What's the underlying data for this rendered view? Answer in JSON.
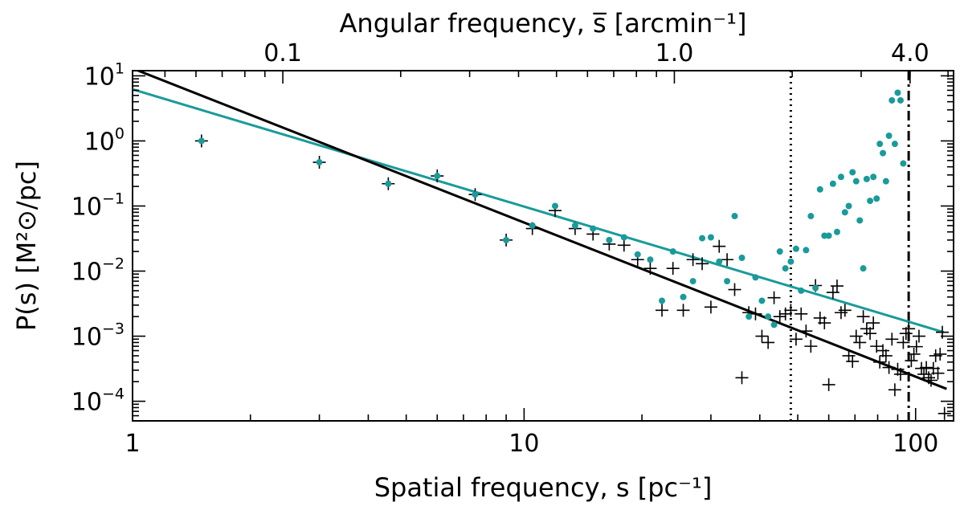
{
  "chart_data": {
    "type": "scatter",
    "x_scale": "log",
    "y_scale": "log",
    "xlim": [
      1,
      125
    ],
    "ylim": [
      5e-05,
      12
    ],
    "xlabel": "Spatial frequency, s [pc⁻¹]",
    "top_xlabel": "Angular frequency, s̅ [arcmin⁻¹]",
    "ylabel": "P(s)   [M²⊙/pc]",
    "x_ticks": [
      {
        "value": 1,
        "label": "1"
      },
      {
        "value": 10,
        "label": "10"
      },
      {
        "value": 100,
        "label": "100"
      }
    ],
    "top_ticks": [
      {
        "value": 0.1,
        "label": "0.1"
      },
      {
        "value": 1.0,
        "label": "1.0"
      },
      {
        "value": 4.0,
        "label": "4.0"
      }
    ],
    "y_ticks": [
      {
        "value": 0.0001,
        "base": "10",
        "exp": "−4"
      },
      {
        "value": 0.001,
        "base": "10",
        "exp": "−3"
      },
      {
        "value": 0.01,
        "base": "10",
        "exp": "−2"
      },
      {
        "value": 0.1,
        "base": "10",
        "exp": "−1"
      },
      {
        "value": 1,
        "base": "10",
        "exp": "0"
      },
      {
        "value": 10,
        "base": "10",
        "exp": "1"
      }
    ],
    "vertical_lines": [
      {
        "x": 48,
        "style": "dotted"
      },
      {
        "x": 96,
        "style": "dashdot"
      }
    ],
    "colors": {
      "teal": "#1a9a9a",
      "black": "#000000"
    },
    "series": [
      {
        "marker": "dot",
        "color": "#1a9a9a",
        "x": [
          1.5,
          3.0,
          4.5,
          6.0,
          7.5,
          9.0,
          10.5,
          12.0,
          13.5,
          15.0,
          16.5,
          18.0,
          19.5,
          21.0,
          22.5,
          24.0,
          25.5,
          27.0,
          28.5,
          30.0,
          31.5,
          33.0,
          34.5,
          36.0,
          37.5,
          39.0,
          40.5,
          42.0,
          43.5,
          45.0,
          46.5,
          48.0,
          49.5,
          51.0,
          52.5,
          54.0,
          55.5,
          57.0,
          58.5,
          60.0,
          61.5,
          63.0,
          64.5,
          66.0,
          67.5,
          69.0,
          70.5,
          72.0,
          73.5,
          75.0,
          76.5,
          78.0,
          79.5,
          81.0,
          82.5,
          84.0,
          85.5,
          87.0,
          88.5,
          90.0,
          91.5,
          93.0
        ],
        "y": [
          1.0,
          0.47,
          0.22,
          0.29,
          0.15,
          0.03,
          0.05,
          0.1,
          0.05,
          0.045,
          0.03,
          0.033,
          0.018,
          0.015,
          0.0035,
          0.02,
          0.004,
          0.007,
          0.032,
          0.033,
          0.014,
          0.007,
          0.07,
          0.016,
          0.002,
          0.008,
          0.0035,
          0.002,
          0.0015,
          0.02,
          0.011,
          0.014,
          0.022,
          0.005,
          0.021,
          0.07,
          0.0055,
          0.18,
          0.035,
          0.035,
          0.22,
          0.04,
          0.28,
          0.08,
          0.1,
          0.33,
          0.24,
          0.06,
          0.011,
          0.26,
          0.12,
          0.28,
          0.13,
          0.9,
          0.65,
          0.24,
          1.2,
          4.2,
          0.9,
          5.5,
          4.2,
          0.45
        ]
      },
      {
        "marker": "plus",
        "color": "#000000",
        "x": [
          1.5,
          3.0,
          4.5,
          6.0,
          7.5,
          9.0,
          10.5,
          12.0,
          13.5,
          15.0,
          16.5,
          18.0,
          19.5,
          21.0,
          22.5,
          24.0,
          25.5,
          27.0,
          28.5,
          30.0,
          31.5,
          33.0,
          34.5,
          36.0,
          37.5,
          39.0,
          40.5,
          42.0,
          43.5,
          45.0,
          46.5,
          48.0,
          49.5,
          51.0,
          52.5,
          54.0,
          55.5,
          57.0,
          58.5,
          60.0,
          61.5,
          63.0,
          64.5,
          66.0,
          67.5,
          69.0,
          70.5,
          72.0,
          73.5,
          75.0,
          76.5,
          78.0,
          79.5,
          81.0,
          82.5,
          84.0,
          85.5,
          87.0,
          88.5,
          90.0,
          91.5,
          93.0,
          94.5,
          96.0,
          97.5,
          99.0,
          100.5,
          102.0,
          103.5,
          105.0,
          106.5,
          108.0,
          109.5,
          111.0,
          112.5,
          114.0,
          115.5,
          117.0,
          118.5
        ],
        "y": [
          1.0,
          0.47,
          0.22,
          0.29,
          0.15,
          0.03,
          0.045,
          0.085,
          0.045,
          0.037,
          0.026,
          0.025,
          0.015,
          0.011,
          0.0025,
          0.011,
          0.0025,
          0.015,
          0.013,
          0.0028,
          0.024,
          0.015,
          0.0052,
          0.00023,
          0.0023,
          0.0022,
          0.001,
          0.0008,
          0.0039,
          0.002,
          0.0022,
          0.0025,
          0.0009,
          0.0022,
          0.0012,
          0.0007,
          0.006,
          0.0019,
          0.0016,
          0.00018,
          0.0047,
          0.0059,
          0.0023,
          0.0025,
          0.0005,
          0.00041,
          0.001,
          0.0008,
          0.002,
          0.0013,
          0.0011,
          0.0016,
          0.0007,
          0.0004,
          0.0006,
          0.0005,
          0.00033,
          0.0009,
          0.00015,
          0.00031,
          0.00026,
          0.0008,
          0.0011,
          0.0013,
          0.00042,
          0.00053,
          0.00069,
          0.001,
          0.00032,
          0.00026,
          0.00033,
          0.00023,
          0.00021,
          0.00032,
          0.0005,
          0.00027,
          0.00053,
          0.00115,
          6.5e-05
        ]
      },
      {
        "marker": "line",
        "color": "#1a9a9a",
        "x": [
          1,
          118
        ],
        "y": [
          6.2,
          0.00115
        ]
      },
      {
        "marker": "line",
        "color": "#000000",
        "x": [
          1,
          120
        ],
        "y": [
          13,
          0.000155
        ]
      }
    ]
  }
}
